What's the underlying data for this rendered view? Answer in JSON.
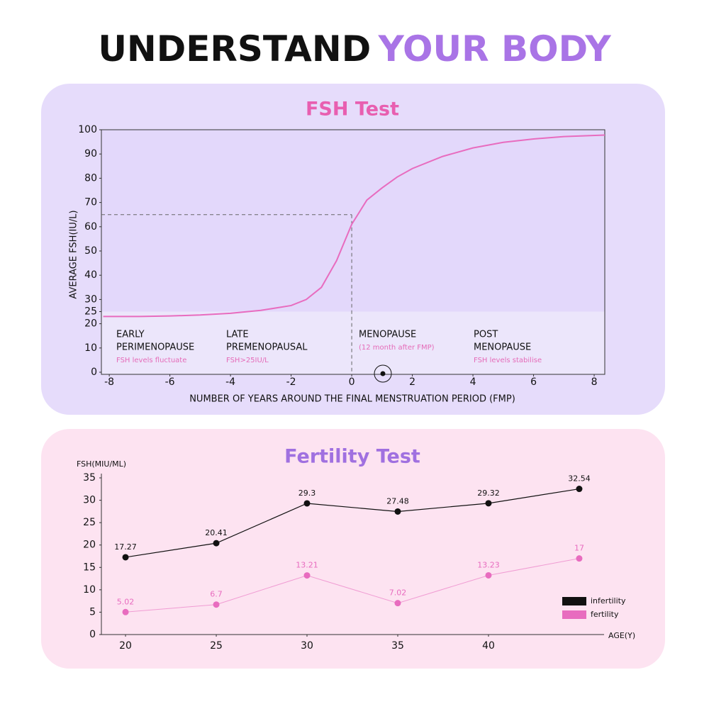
{
  "header": {
    "title_part1": "UNDERSTAND",
    "title_part2": "YOUR BODY"
  },
  "chart_data": [
    {
      "type": "line",
      "title": "FSH Test",
      "y_label": "AVERAGE FSH(IU/L)",
      "x_label": "NUMBER OF YEARS AROUND THE FINAL MENSTRUATION PERIOD (FMP)",
      "x": [
        -8.2,
        -7,
        -6,
        -5,
        -4,
        -3,
        -2,
        -1.5,
        -1,
        -0.5,
        0,
        0.5,
        1,
        1.5,
        2,
        3,
        4,
        5,
        6,
        7,
        8.35
      ],
      "values": [
        23,
        23,
        23.2,
        23.6,
        24.3,
        25.5,
        27.5,
        30,
        35,
        46,
        61,
        71,
        76,
        80.5,
        84,
        89,
        92.5,
        94.8,
        96.2,
        97.2,
        97.8
      ],
      "color": "#e86cbf",
      "xlim": [
        -8.26,
        8.35
      ],
      "ylim": [
        0,
        100
      ],
      "xticks": [
        -8,
        -6,
        -4,
        -2,
        0,
        2,
        4,
        6,
        8
      ],
      "yticks": [
        0,
        10,
        20,
        25,
        30,
        40,
        50,
        60,
        70,
        80,
        90,
        100
      ],
      "band_below": 25,
      "guide": {
        "x": 0,
        "y": 65
      },
      "phases": [
        {
          "title": [
            "EARLY",
            "PERIMENOPAUSE"
          ],
          "note": "FSH levels fluctuate"
        },
        {
          "title": [
            "LATE",
            "PREMENOPAUSAL"
          ],
          "note": "FSH>25IU/L"
        },
        {
          "title": [
            "MENOPAUSE"
          ],
          "note": "(12 month after FMP)"
        },
        {
          "title": [
            "POST",
            "MENOPAUSE"
          ],
          "note": "FSH levels stabilise"
        }
      ]
    },
    {
      "type": "line",
      "title": "Fertility Test",
      "y_label": "FSH(MIU/ML)",
      "x_label": "AGE(Y)",
      "x": [
        20,
        25,
        30,
        35,
        40,
        45
      ],
      "series": [
        {
          "name": "infertility",
          "color": "#111111",
          "values": [
            17.27,
            20.41,
            29.3,
            27.48,
            29.32,
            32.54
          ]
        },
        {
          "name": "fertility",
          "color": "#e86cbf",
          "values": [
            5.02,
            6.7,
            13.21,
            7.02,
            13.23,
            17
          ]
        }
      ],
      "xlim": [
        18.67,
        45.9
      ],
      "ylim": [
        0,
        35
      ],
      "xticks": [
        20,
        25,
        30,
        35,
        40
      ],
      "yticks": [
        0,
        5,
        10,
        15,
        20,
        25,
        30,
        35
      ],
      "legend": "lower right"
    }
  ]
}
